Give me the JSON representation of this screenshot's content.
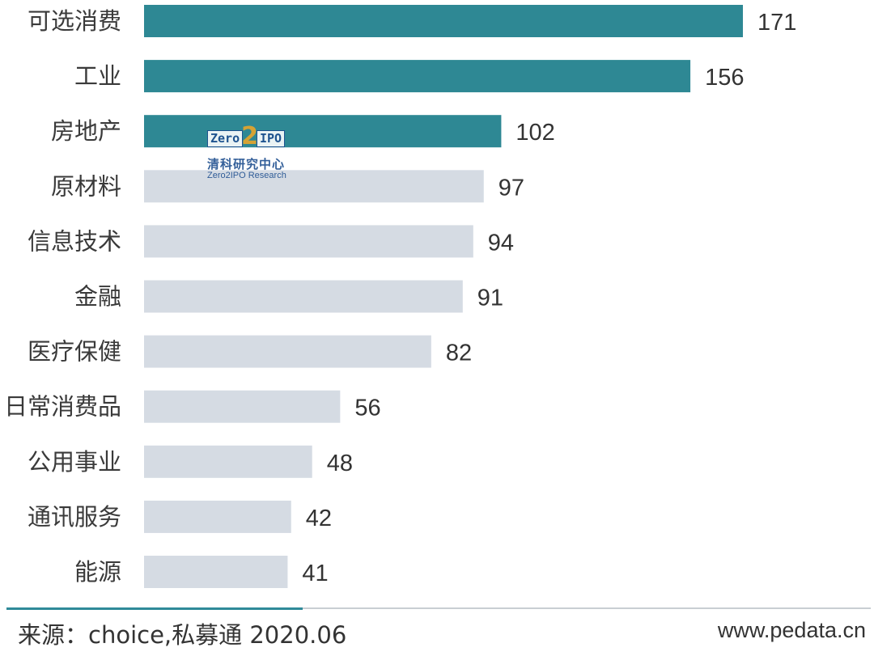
{
  "chart_data": {
    "type": "bar",
    "orientation": "horizontal",
    "categories": [
      "可选消费",
      "工业",
      "房地产",
      "原材料",
      "信息技术",
      "金融",
      "医疗保健",
      "日常消费品",
      "公用事业",
      "通讯服务",
      "能源"
    ],
    "values": [
      171,
      156,
      102,
      97,
      94,
      91,
      82,
      56,
      48,
      42,
      41
    ],
    "highlighted_count": 3,
    "colors": {
      "highlight": "#2e8894",
      "normal": "#d5dbe3"
    },
    "xlim": [
      0,
      171
    ],
    "grid": false,
    "legend": "none"
  },
  "watermark": {
    "logo_text_left": "Zero",
    "logo_text_mid": "2",
    "logo_text_right": "IPO",
    "name_cn": "清科研究中心",
    "name_en": "Zero2IPO Research"
  },
  "footer": {
    "source": "来源：choice,私募通 2020.06",
    "site": "www.pedata.cn"
  }
}
